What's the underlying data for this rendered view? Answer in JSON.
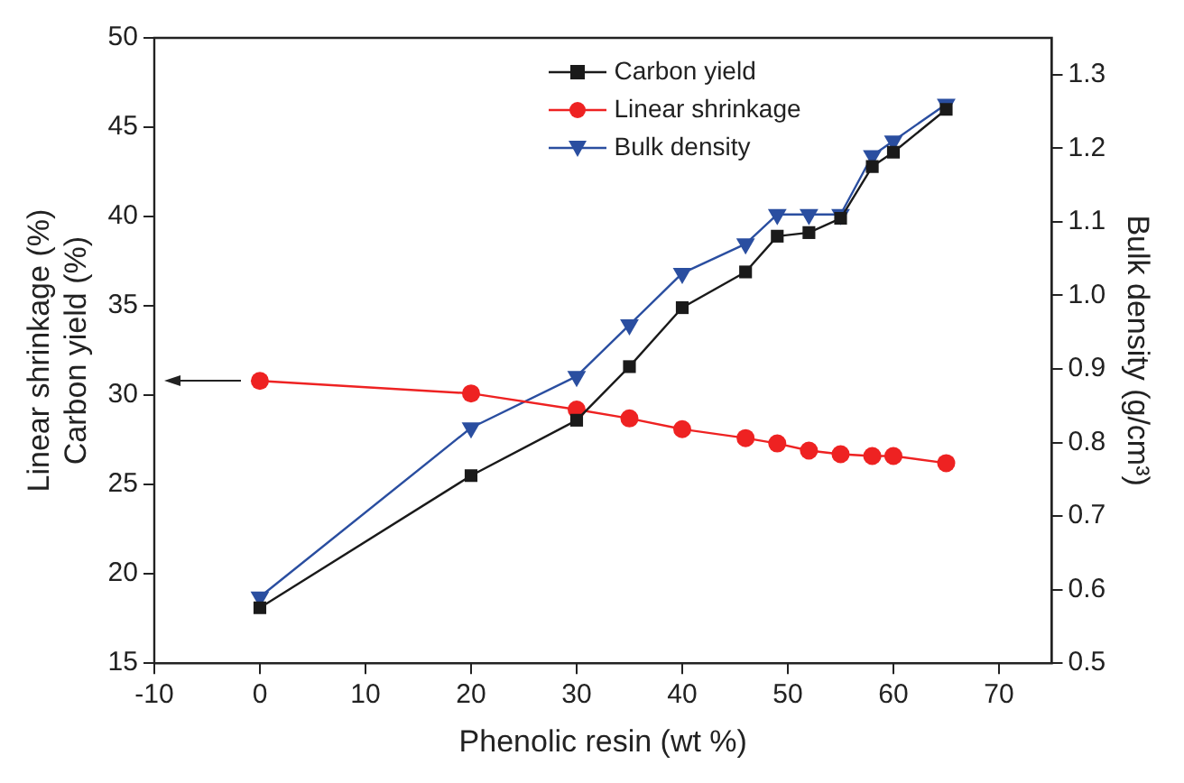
{
  "chart_data": {
    "type": "line",
    "xlabel": "Phenolic resin (wt %)",
    "ylabel": "Linear shrinkage (%)\nCarbon yield (%)",
    "y2label": "Bulk density (g/cm³)",
    "x": [
      0,
      20,
      30,
      35,
      40,
      46,
      49,
      52,
      55,
      58,
      60,
      65
    ],
    "xlim": [
      -10,
      75
    ],
    "xticks": [
      -10,
      0,
      10,
      20,
      30,
      40,
      50,
      60,
      70
    ],
    "ylim": [
      15,
      50
    ],
    "yticks": [
      15,
      20,
      25,
      30,
      35,
      40,
      45,
      50
    ],
    "y2lim": [
      0.5,
      1.35
    ],
    "y2ticks": [
      0.5,
      0.6,
      0.7,
      0.8,
      0.9,
      {
        "value": 1,
        "label": "1.0"
      },
      1.1,
      1.2,
      1.3
    ],
    "series": [
      {
        "name": "Carbon yield",
        "color": "#1a1a1a",
        "marker": "square",
        "values": [
          18.1,
          25.5,
          28.6,
          31.6,
          34.9,
          36.9,
          38.9,
          39.1,
          39.9,
          42.8,
          43.6,
          46.0
        ]
      },
      {
        "name": "Linear shrinkage",
        "color": "#ee2222",
        "marker": "circle",
        "values": [
          30.8,
          30.1,
          29.2,
          28.7,
          28.1,
          27.6,
          27.3,
          26.9,
          26.7,
          26.6,
          26.6,
          26.2
        ]
      },
      {
        "name": "Bulk density",
        "color": "#2a4ea0",
        "marker": "triangle",
        "axis": "y2",
        "values": [
          0.59,
          0.82,
          0.89,
          0.96,
          1.03,
          1.07,
          1.11,
          1.11,
          1.11,
          1.19,
          1.21,
          1.26
        ]
      }
    ],
    "grid": false,
    "legend": "top"
  }
}
